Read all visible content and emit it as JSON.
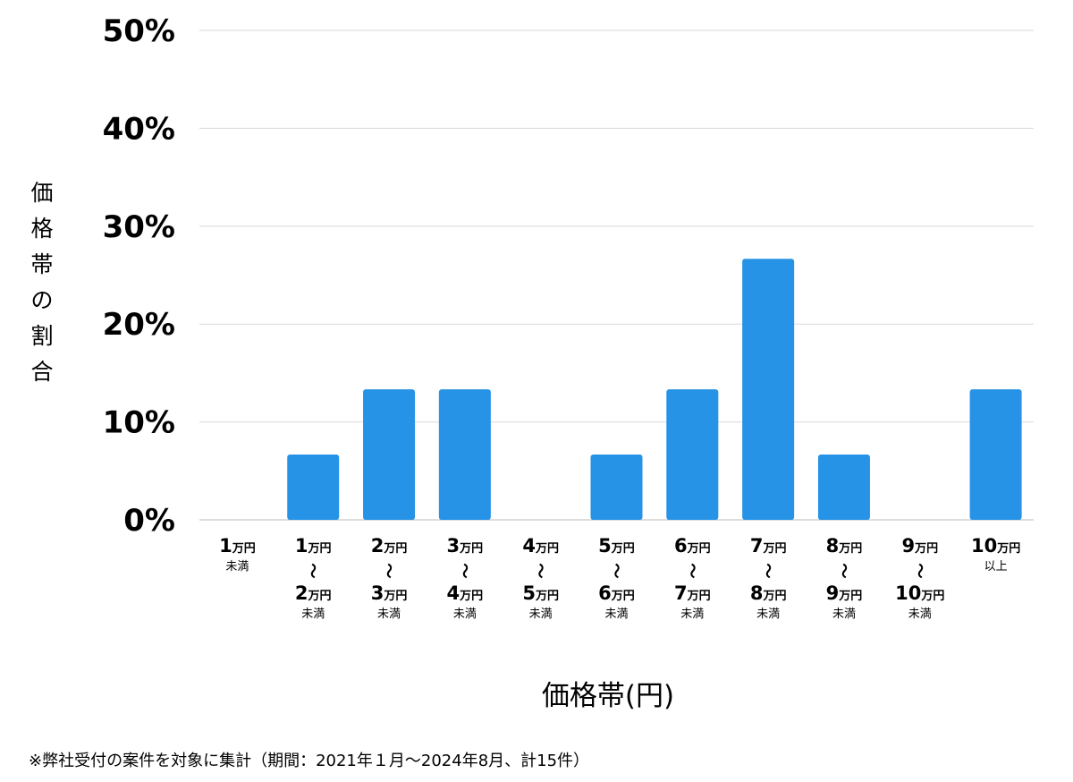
{
  "chart_data": {
    "type": "bar",
    "ylabel": "価格帯の割合",
    "xlabel": "価格帯(円)",
    "ylim": [
      0,
      50
    ],
    "yticks": [
      "0%",
      "10%",
      "20%",
      "30%",
      "40%",
      "50%"
    ],
    "grid": true,
    "bar_color": "#2693e6",
    "categories": [
      {
        "lines": [
          {
            "num": "1",
            "unit": "万円"
          }
        ],
        "suffix": "未満"
      },
      {
        "lines": [
          {
            "num": "1",
            "unit": "万円"
          },
          {
            "num": "2",
            "unit": "万円"
          }
        ],
        "suffix": "未満"
      },
      {
        "lines": [
          {
            "num": "2",
            "unit": "万円"
          },
          {
            "num": "3",
            "unit": "万円"
          }
        ],
        "suffix": "未満"
      },
      {
        "lines": [
          {
            "num": "3",
            "unit": "万円"
          },
          {
            "num": "4",
            "unit": "万円"
          }
        ],
        "suffix": "未満"
      },
      {
        "lines": [
          {
            "num": "4",
            "unit": "万円"
          },
          {
            "num": "5",
            "unit": "万円"
          }
        ],
        "suffix": "未満"
      },
      {
        "lines": [
          {
            "num": "5",
            "unit": "万円"
          },
          {
            "num": "6",
            "unit": "万円"
          }
        ],
        "suffix": "未満"
      },
      {
        "lines": [
          {
            "num": "6",
            "unit": "万円"
          },
          {
            "num": "7",
            "unit": "万円"
          }
        ],
        "suffix": "未満"
      },
      {
        "lines": [
          {
            "num": "7",
            "unit": "万円"
          },
          {
            "num": "8",
            "unit": "万円"
          }
        ],
        "suffix": "未満"
      },
      {
        "lines": [
          {
            "num": "8",
            "unit": "万円"
          },
          {
            "num": "9",
            "unit": "万円"
          }
        ],
        "suffix": "未満"
      },
      {
        "lines": [
          {
            "num": "9",
            "unit": "万円"
          },
          {
            "num": "10",
            "unit": "万円"
          }
        ],
        "suffix": "未満"
      },
      {
        "lines": [
          {
            "num": "10",
            "unit": "万円"
          }
        ],
        "suffix": "以上"
      }
    ],
    "range_mark": "〜",
    "values": [
      0,
      6.67,
      13.33,
      13.33,
      0,
      6.67,
      13.33,
      26.67,
      6.67,
      0,
      13.33
    ]
  },
  "footnote": "※弊社受付の案件を対象に集計（期間：2021年１月〜2024年8月、計15件）"
}
